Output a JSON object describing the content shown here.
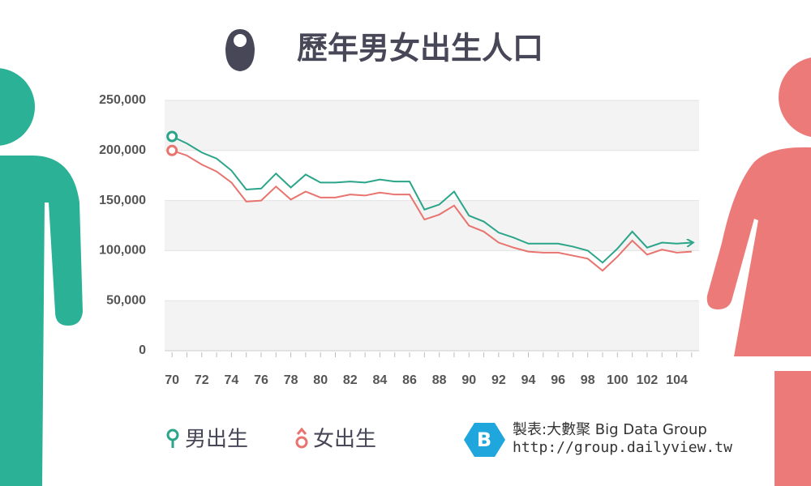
{
  "chart_data": {
    "type": "line",
    "title": "歷年男女出生人口",
    "x": [
      70,
      71,
      72,
      73,
      74,
      75,
      76,
      77,
      78,
      79,
      80,
      81,
      82,
      83,
      84,
      85,
      86,
      87,
      88,
      89,
      90,
      91,
      92,
      93,
      94,
      95,
      96,
      97,
      98,
      99,
      100,
      101,
      102,
      103,
      104,
      105
    ],
    "series": [
      {
        "name": "男出生",
        "color": "#2ba58a",
        "values": [
          214000,
          207000,
          198000,
          192000,
          180000,
          161000,
          162000,
          177000,
          163000,
          176000,
          168000,
          168000,
          169000,
          168000,
          171000,
          169000,
          169000,
          141000,
          146000,
          159000,
          135000,
          129000,
          118000,
          113000,
          107000,
          107000,
          107000,
          104000,
          100000,
          88000,
          102000,
          119000,
          103000,
          108000,
          107000,
          108000
        ]
      },
      {
        "name": "女出生",
        "color": "#e8736f",
        "values": [
          200000,
          195000,
          186000,
          179000,
          168000,
          149000,
          150000,
          164000,
          151000,
          159000,
          153000,
          153000,
          156000,
          155000,
          158000,
          156000,
          156000,
          131000,
          136000,
          145000,
          125000,
          119000,
          108000,
          103000,
          99000,
          98000,
          98000,
          95000,
          92000,
          80000,
          94000,
          110000,
          96000,
          101000,
          98000,
          99000
        ]
      }
    ],
    "xlim": [
      69.5,
      105.5
    ],
    "xticks": [
      70,
      72,
      74,
      76,
      78,
      80,
      82,
      84,
      86,
      88,
      90,
      92,
      94,
      96,
      98,
      100,
      102,
      104
    ],
    "ylim": [
      0,
      250000
    ],
    "yticks": [
      0,
      {
        "value": 50000,
        "label": "50,000"
      },
      {
        "value": 100000,
        "label": "100,000"
      },
      {
        "value": 150000,
        "label": "150,000"
      },
      {
        "value": 200000,
        "label": "200,000"
      },
      {
        "value": 250000,
        "label": "250,000"
      }
    ],
    "grid": true,
    "source": [
      "製表:大數聚 Big Data Group",
      "http://group.dailyview.tw"
    ]
  }
}
